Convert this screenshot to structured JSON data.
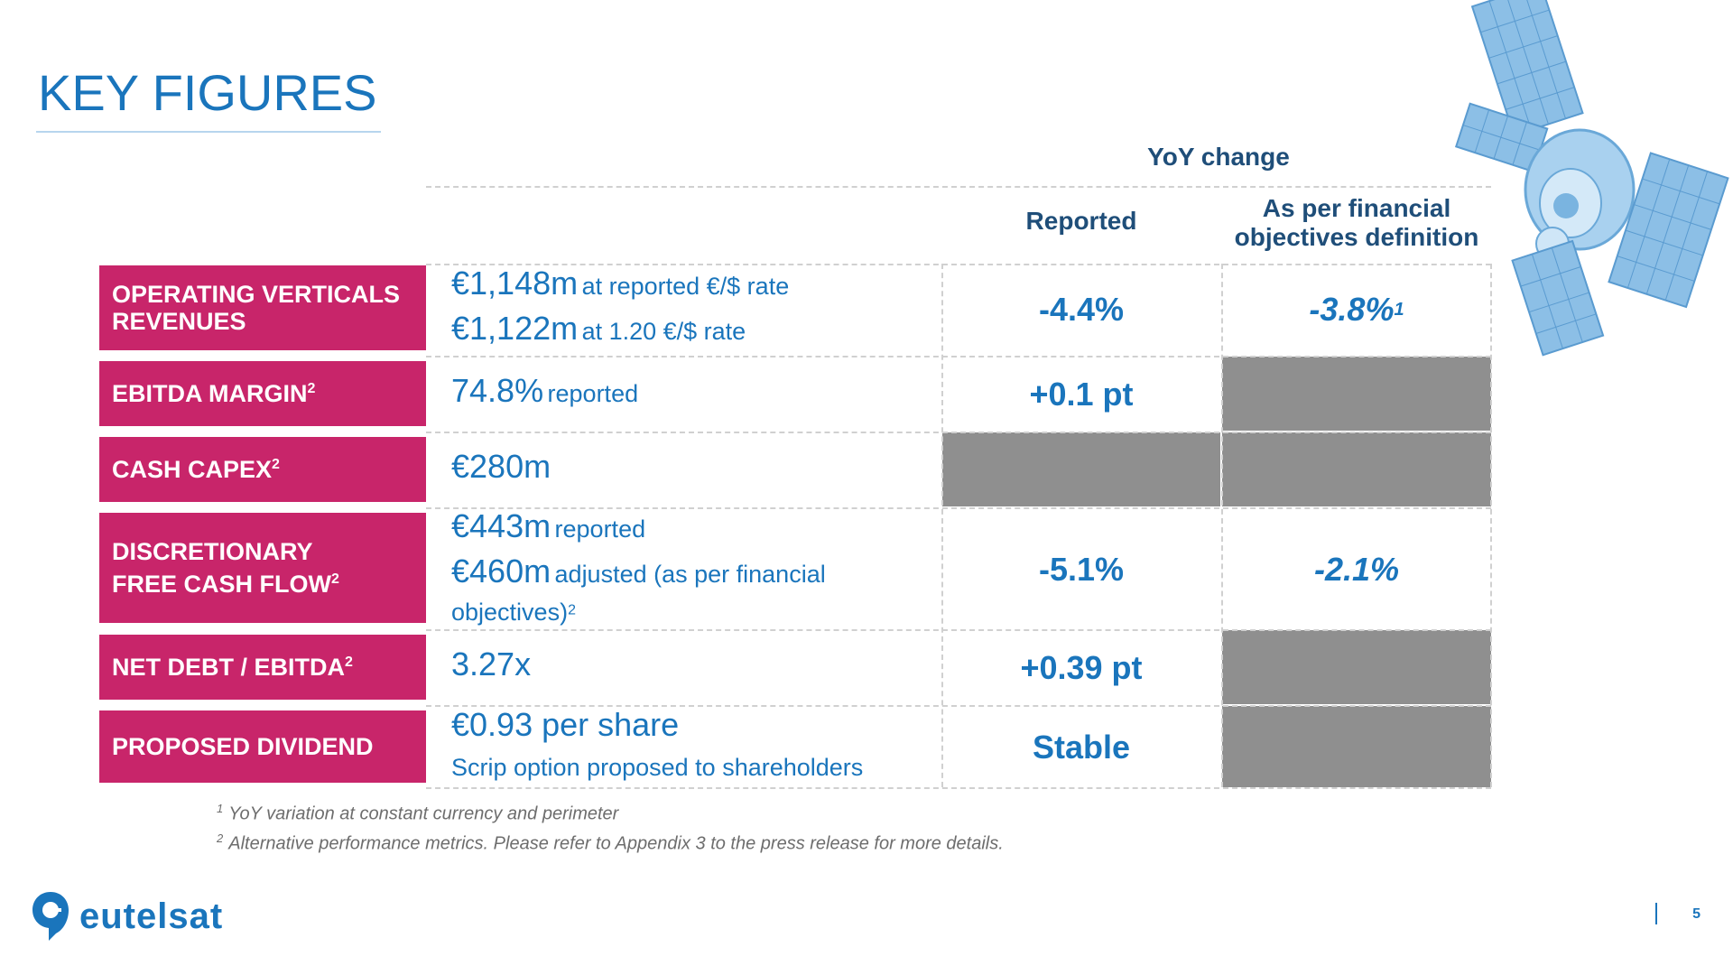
{
  "title": "KEY FIGURES",
  "header": {
    "yoy_change": "YoY change",
    "col_reported": "Reported",
    "col_financial": "As per financial objectives definition"
  },
  "rows": [
    {
      "label": "OPERATING VERTICALS REVENUES",
      "value_big_1": "€1,148m",
      "value_small_1": "at reported €/$ rate",
      "value_big_2": "€1,122m",
      "value_small_2": "at 1.20 €/$ rate",
      "reported": "-4.4%",
      "financial": "-3.8%",
      "financial_sup": "1"
    },
    {
      "label": "EBITDA MARGIN",
      "label_sup": "2",
      "value_big": "74.8%",
      "value_small": "reported",
      "reported": "+0.1 pt"
    },
    {
      "label": "CASH CAPEX",
      "label_sup": "2",
      "value_big": "€280m"
    },
    {
      "label_line1": "DISCRETIONARY",
      "label_line2": "FREE CASH FLOW",
      "label_sup": "2",
      "value_big_1": "€443m",
      "value_small_1": "reported",
      "value_big_2": "€460m",
      "value_small_2": "adjusted (as per financial",
      "value_small_3": "objectives)",
      "value_sup": "2",
      "reported": "-5.1%",
      "financial": "-2.1%"
    },
    {
      "label": "NET DEBT / EBITDA",
      "label_sup": "2",
      "value_big": "3.27x",
      "reported": "+0.39 pt"
    },
    {
      "label": "PROPOSED DIVIDEND",
      "value_big": "€0.93 per share",
      "value_small": "Scrip option proposed to shareholders",
      "reported": "Stable"
    }
  ],
  "footnotes": [
    {
      "num": "1",
      "text": "YoY variation at constant currency and perimeter"
    },
    {
      "num": "2",
      "text": "Alternative performance metrics. Please refer to Appendix 3 to the press release for more details."
    }
  ],
  "logo_text": "eutelsat",
  "page_number": "5",
  "colors": {
    "accent": "#1a75bc",
    "label_bg": "#c8256a",
    "header_text": "#1f4e79",
    "grey_cell": "#8f8f8f"
  },
  "icons": [
    "satellite-image",
    "eutelsat-logo-icon"
  ]
}
